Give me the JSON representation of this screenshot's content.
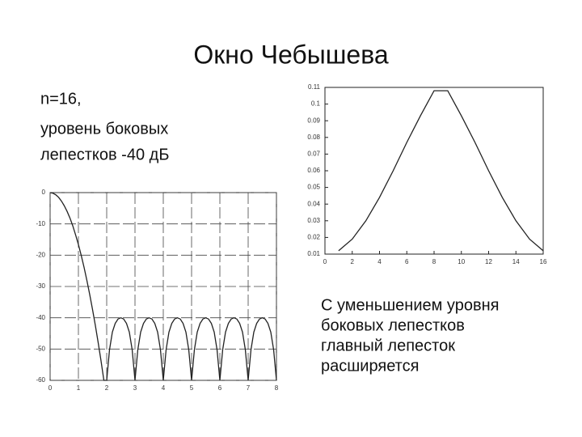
{
  "title": "Окно Чебышева",
  "subtitle_lines": [
    "n=16,",
    "уровень боковых",
    "лепестков -40 дБ"
  ],
  "caption_lines": [
    "С уменьшением уровня",
    "боковых лепестков",
    "главный лепесток",
    "расширяется"
  ],
  "chart_data": [
    {
      "type": "line",
      "x": [
        1,
        2,
        3,
        4,
        5,
        6,
        7,
        8,
        9,
        10,
        11,
        12,
        13,
        14,
        15,
        16
      ],
      "values": [
        0.012,
        0.019,
        0.03,
        0.044,
        0.06,
        0.077,
        0.093,
        0.108,
        0.108,
        0.093,
        0.077,
        0.06,
        0.044,
        0.03,
        0.019,
        0.012
      ],
      "color": "#222222",
      "xlim": [
        0,
        16
      ],
      "xticks": [
        0,
        2,
        4,
        6,
        8,
        10,
        12,
        14,
        16
      ],
      "ylim": [
        0.01,
        0.11
      ],
      "yticks": [
        0.01,
        0.02,
        0.03,
        0.04,
        0.05,
        0.06,
        0.07,
        0.08,
        0.09,
        0.1,
        0.11
      ],
      "grid": false
    },
    {
      "type": "line",
      "x": [
        0,
        0.1,
        0.2,
        0.3,
        0.4,
        0.5,
        0.6,
        0.7,
        0.8,
        0.9,
        1,
        1.1,
        1.2,
        1.3,
        1.4,
        1.5,
        1.6,
        1.7,
        1.8,
        1.9,
        2,
        2.1,
        2.2,
        2.3,
        2.4,
        2.5,
        2.6,
        2.7,
        2.8,
        2.9,
        3,
        3.1,
        3.2,
        3.3,
        3.4,
        3.5,
        3.6,
        3.7,
        3.8,
        3.9,
        4,
        4.1,
        4.2,
        4.3,
        4.4,
        4.5,
        4.6,
        4.7,
        4.8,
        4.9,
        5,
        5.1,
        5.2,
        5.3,
        5.4,
        5.5,
        5.6,
        5.7,
        5.8,
        5.9,
        6,
        6.1,
        6.2,
        6.3,
        6.4,
        6.5,
        6.6,
        6.7,
        6.8,
        6.9,
        7,
        7.1,
        7.2,
        7.3,
        7.4,
        7.5,
        7.6,
        7.7,
        7.8,
        7.9,
        8
      ],
      "values": [
        0,
        -0.2,
        -0.7,
        -1.5,
        -2.7,
        -4.2,
        -6,
        -8.1,
        -10.6,
        -13.5,
        -16.6,
        -20.1,
        -23.9,
        -28.1,
        -32.6,
        -37.4,
        -42.5,
        -48,
        -53.8,
        -60,
        -60,
        -50.2,
        -44.6,
        -41.8,
        -40.4,
        -40,
        -40.4,
        -41.8,
        -44.6,
        -50.2,
        -60,
        -50.2,
        -44.6,
        -41.8,
        -40.4,
        -40,
        -40.4,
        -41.8,
        -44.6,
        -50.2,
        -60,
        -50.2,
        -44.6,
        -41.8,
        -40.4,
        -40,
        -40.4,
        -41.8,
        -44.6,
        -50.2,
        -60,
        -50.2,
        -44.6,
        -41.8,
        -40.4,
        -40,
        -40.4,
        -41.8,
        -44.6,
        -50.2,
        -60,
        -50.2,
        -44.6,
        -41.8,
        -40.4,
        -40,
        -40.4,
        -41.8,
        -44.6,
        -50.2,
        -60,
        -50.2,
        -44.6,
        -41.8,
        -40.4,
        -40,
        -40.4,
        -41.8,
        -44.6,
        -50.2,
        -60
      ],
      "color": "#222222",
      "xlim": [
        0,
        8
      ],
      "xticks": [
        0,
        1,
        2,
        3,
        4,
        5,
        6,
        7,
        8
      ],
      "ylim": [
        -60,
        0
      ],
      "yticks": [
        0,
        -10,
        -20,
        -30,
        -40,
        -50,
        -60
      ],
      "grid": true
    }
  ]
}
